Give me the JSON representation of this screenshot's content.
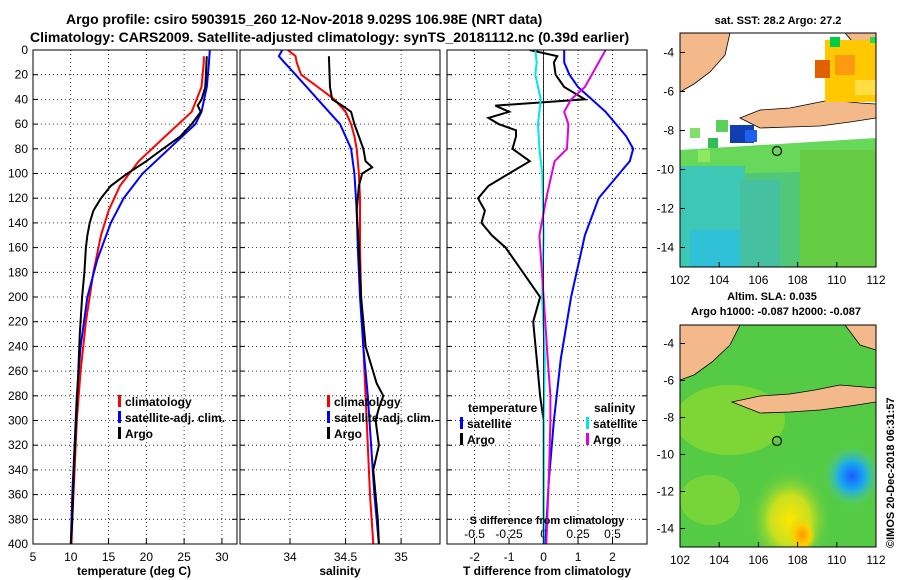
{
  "title_line1": "Argo profile: csiro 5903915_260 12-Nov-2018 9.029S 106.98E (NRT data)",
  "title_line2": "Climatology: CARS2009. Satellite-adjusted climatology: synTS_20181112.nc (0.39d earlier)",
  "timestamp": "©IMOS 20-Dec-2018 06:31:57",
  "colors": {
    "climatology": "#ff0000",
    "satellite": "#0000ff",
    "argo": "#000000",
    "t_sat": "#00e5ee",
    "s_diff": "#dd00dd"
  },
  "chart_data": [
    {
      "type": "line",
      "name": "temperature",
      "xlabel": "temperature (deg C)",
      "ylabel": "depth",
      "xlim": [
        5,
        32
      ],
      "ylim": [
        0,
        400
      ],
      "xticks": [
        "5",
        "10",
        "15",
        "20",
        "25",
        "30"
      ],
      "yticks": [
        "0",
        "20",
        "40",
        "60",
        "80",
        "100",
        "120",
        "140",
        "160",
        "180",
        "200",
        "220",
        "240",
        "260",
        "280",
        "300",
        "320",
        "340",
        "360",
        "380",
        "400"
      ],
      "legend": [
        "climatology",
        "satellite-adj. clim.",
        "Argo"
      ],
      "series": [
        {
          "name": "climatology",
          "color": "#ff0000",
          "depth": [
            5,
            10,
            30,
            50,
            70,
            90,
            110,
            130,
            150,
            180,
            220,
            260,
            300,
            340,
            380,
            400
          ],
          "value": [
            27.6,
            27.6,
            27.3,
            26,
            22.5,
            19,
            16.5,
            15,
            14,
            13,
            12,
            11.3,
            10.8,
            10.5,
            10.2,
            10.1
          ]
        },
        {
          "name": "satellite-adj. clim.",
          "color": "#0000ff",
          "depth": [
            0,
            10,
            30,
            50,
            60,
            80,
            100,
            120,
            140,
            170,
            200,
            240,
            280,
            320,
            360,
            400
          ],
          "value": [
            28.4,
            28.3,
            28,
            27.3,
            26.5,
            23,
            19.5,
            17,
            15.3,
            13.5,
            12.2,
            11.3,
            10.8,
            10.5,
            10.2,
            10
          ]
        },
        {
          "name": "Argo",
          "color": "#000000",
          "depth": [
            5,
            30,
            40,
            45,
            50,
            60,
            70,
            80,
            90,
            100,
            110,
            120,
            130,
            140,
            150,
            160,
            180,
            200,
            230,
            260,
            300,
            340,
            380,
            400
          ],
          "value": [
            28,
            27.8,
            27.3,
            26.8,
            27.2,
            26,
            24.5,
            22.2,
            20,
            17.5,
            15.3,
            14,
            13,
            12.5,
            12.2,
            12,
            11.8,
            11.5,
            11.2,
            11,
            10.7,
            10.4,
            10.2,
            10
          ]
        }
      ]
    },
    {
      "type": "line",
      "name": "salinity",
      "xlabel": "salinity",
      "xlim": [
        33.55,
        35.35
      ],
      "ylim": [
        0,
        400
      ],
      "xticks": [
        "34",
        "34.5",
        "35"
      ],
      "legend": [
        "climatology",
        "satellite-adj. clim.",
        "Argo"
      ],
      "series": [
        {
          "name": "climatology",
          "color": "#ff0000",
          "depth": [
            0,
            5,
            10,
            20,
            30,
            40,
            50,
            60,
            70,
            80,
            100,
            120,
            160,
            200,
            240,
            280,
            320,
            360,
            400
          ],
          "value": [
            33.98,
            34.05,
            34.06,
            34.1,
            34.25,
            34.4,
            34.5,
            34.55,
            34.58,
            34.6,
            34.62,
            34.63,
            34.63,
            34.64,
            34.66,
            34.68,
            34.7,
            34.72,
            34.75
          ]
        },
        {
          "name": "satellite-adj. clim.",
          "color": "#0000ff",
          "depth": [
            0,
            5,
            10,
            20,
            30,
            40,
            50,
            60,
            70,
            80,
            100,
            130,
            160,
            200,
            240,
            280,
            320,
            360,
            400
          ],
          "value": [
            33.93,
            33.9,
            33.95,
            34.05,
            34.15,
            34.25,
            34.35,
            34.45,
            34.5,
            34.55,
            34.58,
            34.6,
            34.61,
            34.63,
            34.66,
            34.7,
            34.73,
            34.76,
            34.8
          ]
        },
        {
          "name": "Argo",
          "color": "#000000",
          "depth": [
            5,
            30,
            40,
            45,
            50,
            60,
            70,
            80,
            90,
            95,
            100,
            110,
            130,
            160,
            200,
            240,
            270,
            280,
            290,
            300,
            320,
            340,
            380,
            400
          ],
          "value": [
            34.35,
            34.36,
            34.38,
            34.47,
            34.55,
            34.58,
            34.62,
            34.66,
            34.68,
            34.74,
            34.65,
            34.62,
            34.6,
            34.62,
            34.64,
            34.68,
            34.78,
            34.84,
            34.8,
            34.77,
            34.8,
            34.75,
            34.79,
            34.8
          ]
        }
      ]
    },
    {
      "type": "line",
      "name": "difference",
      "xlabel": "T difference from climatology",
      "xlabel2": "S difference from climatology",
      "xlim": [
        -2.8,
        3
      ],
      "ylim": [
        0,
        400
      ],
      "xticks": [
        "-2",
        "-1",
        "0",
        "1",
        "2"
      ],
      "xticks2": [
        "-0.5",
        "-0.25",
        "0",
        "0.25",
        "0.5"
      ],
      "legend_left_title": "temperature",
      "legend_right_title": "salinity",
      "legend_left": [
        "satellite",
        "Argo"
      ],
      "legend_right": [
        "satellite",
        "Argo"
      ],
      "series": [
        {
          "name": "temperature satellite",
          "color": "#0000ff",
          "depth": [
            0,
            10,
            20,
            30,
            40,
            50,
            60,
            70,
            80,
            90,
            100,
            120,
            150,
            200,
            250,
            300,
            350,
            400
          ],
          "value": [
            0.6,
            0.6,
            0.75,
            1.0,
            1.4,
            1.8,
            2.1,
            2.4,
            2.6,
            2.5,
            2.2,
            1.6,
            1.2,
            0.8,
            0.5,
            0.3,
            0.15,
            0.05
          ]
        },
        {
          "name": "temperature Argo",
          "color": "#000000",
          "depth": [
            0,
            5,
            10,
            20,
            30,
            35,
            40,
            45,
            50,
            55,
            60,
            65,
            70,
            80,
            90,
            100,
            110,
            120,
            130,
            140,
            150,
            160,
            180,
            200,
            220,
            250,
            280,
            300,
            340,
            400
          ],
          "value": [
            -0.4,
            0.4,
            0.3,
            0.35,
            0.6,
            0.9,
            1.2,
            -1.4,
            -1.0,
            -1.6,
            -1.3,
            -0.8,
            -0.8,
            -0.9,
            -0.4,
            -1.0,
            -1.6,
            -1.9,
            -1.7,
            -1.8,
            -1.5,
            -1.1,
            -0.6,
            -0.1,
            -0.3,
            -0.2,
            -0.1,
            0.0,
            0.0,
            0.0
          ]
        },
        {
          "name": "salinity satellite",
          "color": "#00e5ee",
          "depth": [
            0,
            10,
            20,
            30,
            40,
            60,
            80,
            100,
            150,
            200,
            250,
            300,
            350,
            400
          ],
          "value": [
            -0.06,
            -0.05,
            -0.06,
            -0.04,
            -0.02,
            -0.04,
            -0.03,
            -0.01,
            0.0,
            -0.01,
            0.01,
            0.0,
            0.0,
            0.0
          ]
        },
        {
          "name": "salinity Argo",
          "color": "#dd00dd",
          "depth": [
            0,
            10,
            20,
            30,
            40,
            50,
            60,
            80,
            90,
            100,
            120,
            150,
            200,
            250,
            280,
            300,
            340,
            400
          ],
          "value": [
            0.45,
            0.4,
            0.35,
            0.3,
            0.2,
            0.15,
            0.18,
            0.17,
            0.08,
            0.06,
            0.02,
            -0.03,
            0.0,
            0.03,
            0.05,
            0.05,
            0.04,
            0.02
          ]
        }
      ]
    },
    {
      "type": "heatmap",
      "name": "sst_map",
      "title": "sat. SST: 28.2 Argo: 27.2",
      "xlim": [
        102,
        112
      ],
      "ylim": [
        -15,
        -3
      ],
      "xticks": [
        "102",
        "104",
        "106",
        "108",
        "110",
        "112"
      ],
      "yticks": [
        "-4",
        "-6",
        "-8",
        "-10",
        "-12",
        "-14"
      ],
      "marker": {
        "lon": 106.98,
        "lat": -9.029
      }
    },
    {
      "type": "heatmap",
      "name": "sla_map",
      "title": "Altim. SLA: 0.035",
      "subtitle": "Argo h1000: -0.087 h2000: -0.087",
      "xlim": [
        102,
        112
      ],
      "ylim": [
        -15,
        -3
      ],
      "xticks": [
        "102",
        "104",
        "106",
        "108",
        "110",
        "112"
      ],
      "yticks": [
        "-4",
        "-6",
        "-8",
        "-10",
        "-12",
        "-14"
      ],
      "marker": {
        "lon": 106.98,
        "lat": -9.029
      }
    }
  ]
}
